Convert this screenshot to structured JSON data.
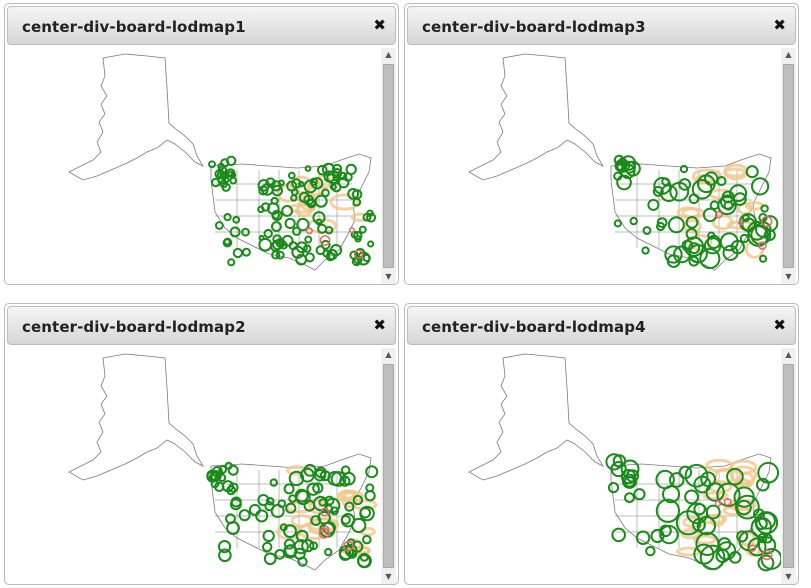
{
  "panels": [
    {
      "title": "center-div-board-lodmap1",
      "variant": "dense"
    },
    {
      "title": "center-div-board-lodmap3",
      "variant": "medium"
    },
    {
      "title": "center-div-board-lodmap2",
      "variant": "dense2"
    },
    {
      "title": "center-div-board-lodmap4",
      "variant": "large"
    }
  ],
  "icons": {
    "close": "close-icon",
    "scroll_up": "scroll-up-arrow-icon",
    "scroll_down": "scroll-down-arrow-icon"
  },
  "close_glyph": "✖",
  "scroll_up_glyph": "▲",
  "scroll_down_glyph": "▼",
  "colors": {
    "marker_stroke": "#1a8a1a",
    "marker_halo": "#f2c48a",
    "marker_hot": "#e26a6a",
    "map_outline": "#7a7a7a"
  }
}
